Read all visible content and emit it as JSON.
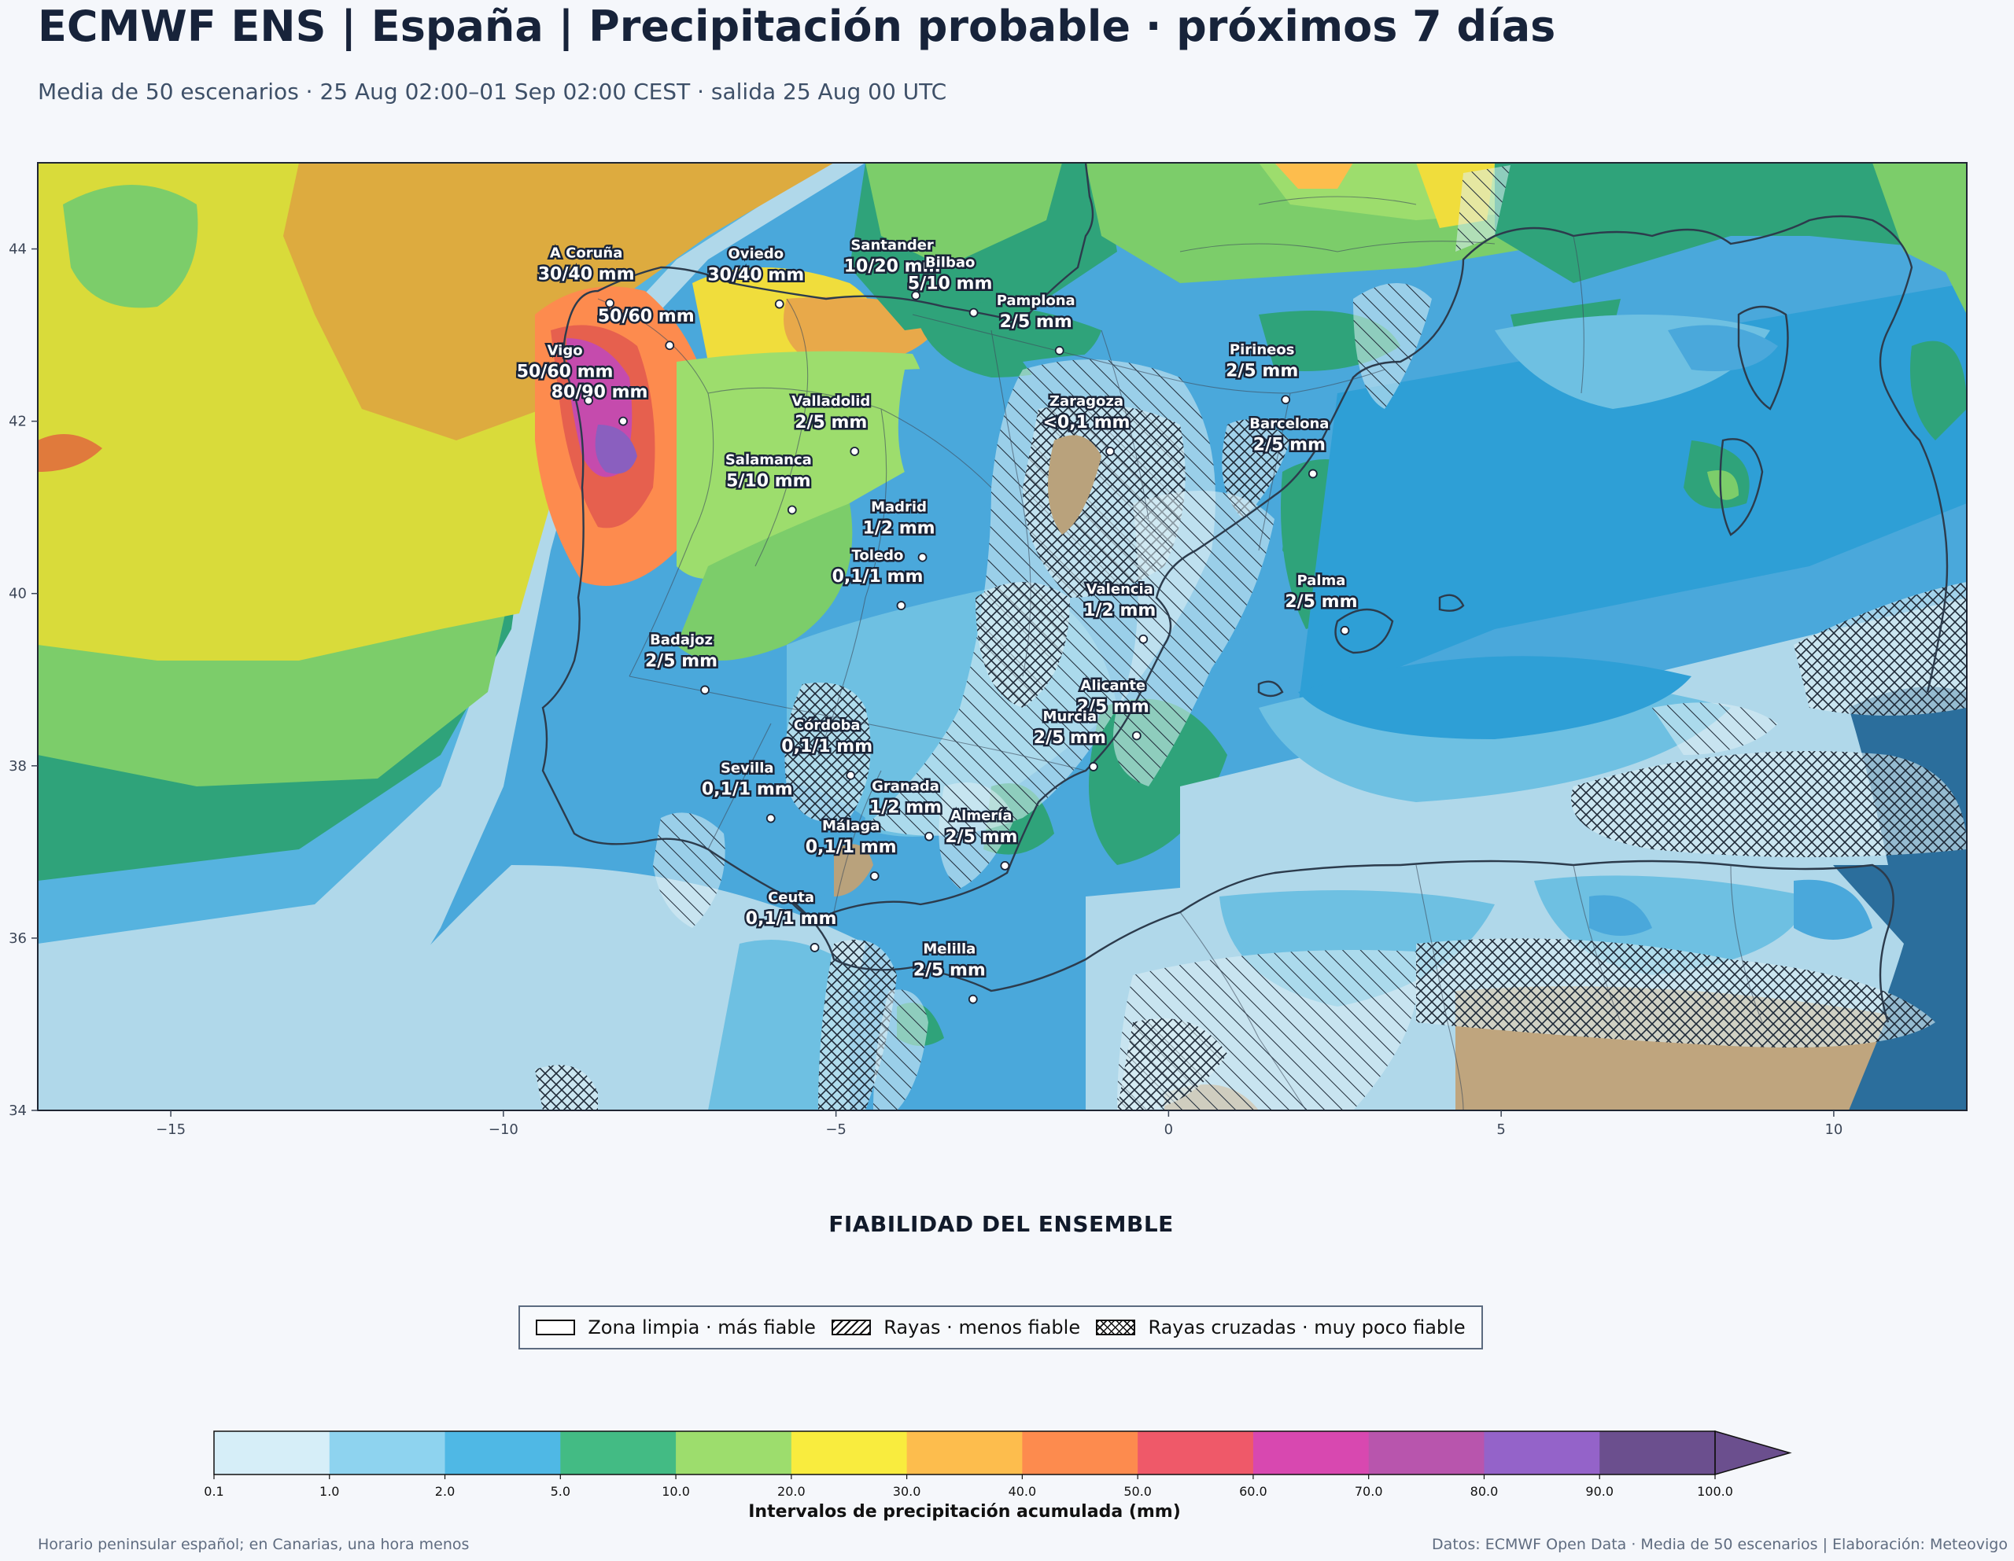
{
  "header": {
    "title": "ECMWF ENS | España | Precipitación probable · próximos 7 días",
    "subtitle": "Media de 50 escenarios · 25 Aug 02:00–01 Sep 02:00 CEST · salida 25 Aug 00 UTC"
  },
  "map": {
    "lon_range": [
      -17,
      12
    ],
    "lat_range": [
      34,
      45
    ],
    "x_ticks": [
      {
        "value": -15,
        "label": "−15"
      },
      {
        "value": -10,
        "label": "−10"
      },
      {
        "value": -5,
        "label": "−5"
      },
      {
        "value": 0,
        "label": "0"
      },
      {
        "value": 5,
        "label": "5"
      },
      {
        "value": 10,
        "label": "10"
      }
    ],
    "y_ticks": [
      {
        "value": 44,
        "label": "44"
      },
      {
        "value": 42,
        "label": "42"
      },
      {
        "value": 40,
        "label": "40"
      },
      {
        "value": 38,
        "label": "38"
      },
      {
        "value": 36,
        "label": "36"
      },
      {
        "value": 34,
        "label": "34"
      }
    ],
    "cities": [
      {
        "name": "A Coruña",
        "value": "30/40 mm",
        "lon": -8.4,
        "lat": 43.37
      },
      {
        "name": "Oviedo",
        "value": "30/40 mm",
        "lon": -5.85,
        "lat": 43.36
      },
      {
        "name": "Santander",
        "value": "10/20 mm",
        "lon": -3.8,
        "lat": 43.46
      },
      {
        "name": "",
        "value": "50/60 mm",
        "lon": -7.5,
        "lat": 42.88
      },
      {
        "name": "Pamplona",
        "value": "2/5 mm",
        "lon": -1.64,
        "lat": 42.82
      },
      {
        "name": "Bilbao",
        "value": "5/10 mm",
        "lon": -2.93,
        "lat": 43.26
      },
      {
        "name": "Pirineos",
        "value": "2/5 mm",
        "lon": 1.76,
        "lat": 42.25
      },
      {
        "name": "",
        "value": "80/90 mm",
        "lon": -8.2,
        "lat": 42.0
      },
      {
        "name": "Zaragoza",
        "value": "<0,1 mm",
        "lon": -0.88,
        "lat": 41.65
      },
      {
        "name": "Valladolid",
        "value": "2/5 mm",
        "lon": -4.72,
        "lat": 41.65
      },
      {
        "name": "Barcelona",
        "value": "2/5 mm",
        "lon": 2.17,
        "lat": 41.39
      },
      {
        "name": "Vigo",
        "value": "50/60 mm",
        "lon": -8.72,
        "lat": 42.24
      },
      {
        "name": "Salamanca",
        "value": "5/10 mm",
        "lon": -5.66,
        "lat": 40.97
      },
      {
        "name": "Madrid",
        "value": "1/2 mm",
        "lon": -3.7,
        "lat": 40.42
      },
      {
        "name": "Valencia",
        "value": "1/2 mm",
        "lon": -0.38,
        "lat": 39.47
      },
      {
        "name": "Toledo",
        "value": "0,1/1 mm",
        "lon": -4.02,
        "lat": 39.86
      },
      {
        "name": "Badajoz",
        "value": "2/5 mm",
        "lon": -6.97,
        "lat": 38.88
      },
      {
        "name": "Palma",
        "value": "2/5 mm",
        "lon": 2.65,
        "lat": 39.57
      },
      {
        "name": "Córdoba",
        "value": "0,1/1 mm",
        "lon": -4.78,
        "lat": 37.89
      },
      {
        "name": "Alicante",
        "value": "2/5 mm",
        "lon": -0.48,
        "lat": 38.35
      },
      {
        "name": "Granada",
        "value": "1/2 mm",
        "lon": -3.6,
        "lat": 37.18
      },
      {
        "name": "Murcia",
        "value": "2/5 mm",
        "lon": -1.13,
        "lat": 37.99
      },
      {
        "name": "Sevilla",
        "value": "0,1/1 mm",
        "lon": -5.98,
        "lat": 37.39
      },
      {
        "name": "Almería",
        "value": "2/5 mm",
        "lon": -2.46,
        "lat": 36.84
      },
      {
        "name": "Málaga",
        "value": "0,1/1 mm",
        "lon": -4.42,
        "lat": 36.72
      },
      {
        "name": "Ceuta",
        "value": "0,1/1 mm",
        "lon": -5.32,
        "lat": 35.89
      },
      {
        "name": "Melilla",
        "value": "2/5 mm",
        "lon": -2.94,
        "lat": 35.29
      }
    ]
  },
  "reliability": {
    "title": "FIABILIDAD DEL ENSEMBLE",
    "items": [
      {
        "label": "Zona limpia · más fiable"
      },
      {
        "label": "Rayas · menos fiable"
      },
      {
        "label": "Rayas cruzadas · muy poco fiable"
      }
    ]
  },
  "colorbar": {
    "title": "Intervalos de precipitación acumulada (mm)",
    "ticks": [
      "0.1",
      "1.0",
      "2.0",
      "5.0",
      "10.0",
      "20.0",
      "30.0",
      "40.0",
      "50.0",
      "60.0",
      "70.0",
      "80.0",
      "90.0",
      "100.0"
    ],
    "colors": [
      "#d6eef8",
      "#8ed3ef",
      "#4fb8e5",
      "#43bb84",
      "#9ddd6d",
      "#f9ec3e",
      "#fdbd4d",
      "#fd8b4e",
      "#ef5969",
      "#d848b0",
      "#b855ad",
      "#9463c9",
      "#6b4f8e"
    ],
    "extend_color": "#6b4f8e"
  },
  "footer": {
    "left": "Horario peninsular español; en Canarias, una hora menos",
    "right": "Datos: ECMWF Open Data · Media de 50 escenarios | Elaboración: Meteovigo"
  }
}
